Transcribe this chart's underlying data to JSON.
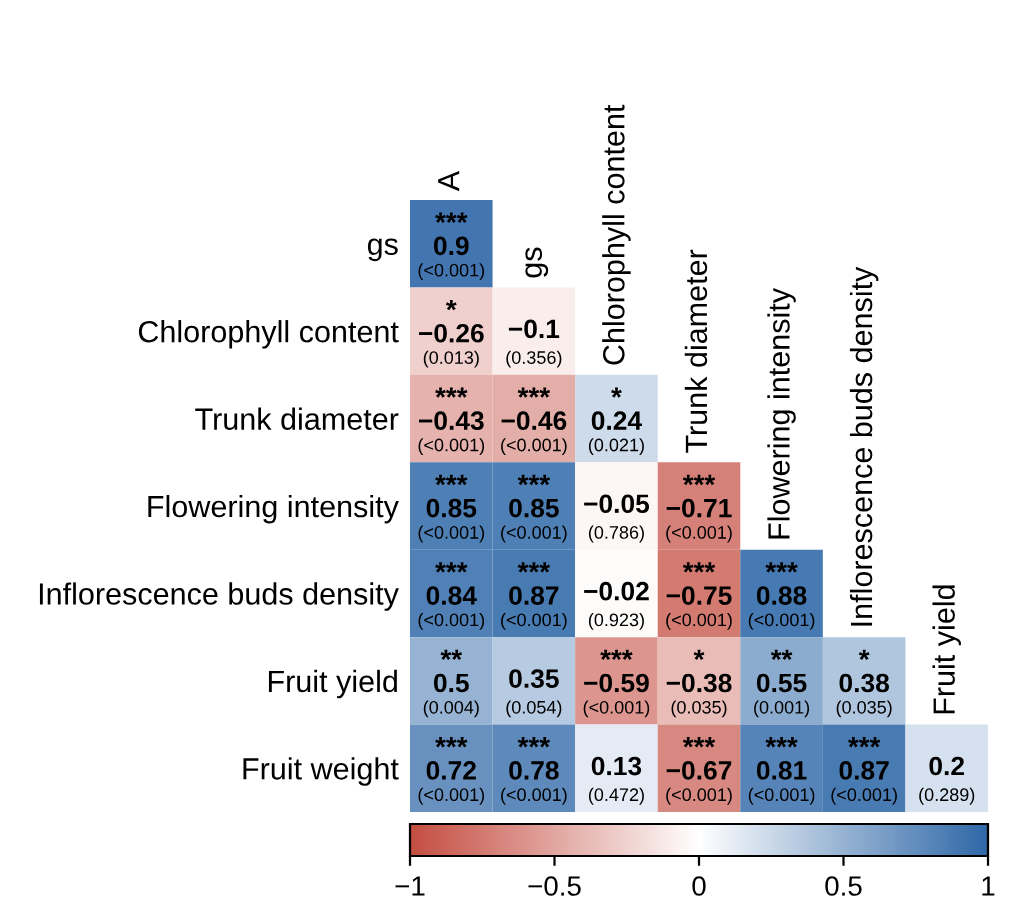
{
  "chart_data": {
    "type": "heatmap",
    "categories": [
      "A",
      "gs",
      "Chlorophyll content",
      "Trunk diameter",
      "Flowering intensity",
      "Inflorescence buds density",
      "Fruit yield"
    ],
    "y_categories": [
      "gs",
      "Chlorophyll content",
      "Trunk diameter",
      "Flowering intensity",
      "Inflorescence buds density",
      "Fruit yield",
      "Fruit weight"
    ],
    "cells": [
      [
        0.9,
        null,
        null,
        null,
        null,
        null,
        null
      ],
      [
        -0.26,
        -0.1,
        null,
        null,
        null,
        null,
        null
      ],
      [
        -0.43,
        -0.46,
        0.24,
        null,
        null,
        null,
        null
      ],
      [
        0.85,
        0.85,
        -0.05,
        -0.71,
        null,
        null,
        null
      ],
      [
        0.84,
        0.87,
        -0.02,
        -0.75,
        0.88,
        null,
        null
      ],
      [
        0.5,
        0.35,
        -0.59,
        -0.38,
        0.55,
        0.38,
        null
      ],
      [
        0.72,
        0.78,
        0.13,
        -0.67,
        0.81,
        0.87,
        0.2
      ]
    ],
    "cell_labels": [
      [
        "***\n0.9\n(<0.001)",
        null,
        null,
        null,
        null,
        null,
        null
      ],
      [
        "*\n−0.26\n(0.013)",
        "−0.1\n(0.356)",
        null,
        null,
        null,
        null,
        null
      ],
      [
        "***\n−0.43\n(<0.001)",
        "***\n−0.46\n(<0.001)",
        "*\n0.24\n(0.021)",
        null,
        null,
        null,
        null
      ],
      [
        "***\n0.85\n(<0.001)",
        "***\n0.85\n(<0.001)",
        "−0.05\n(0.786)",
        "***\n−0.71\n(<0.001)",
        null,
        null,
        null
      ],
      [
        "***\n0.84\n(<0.001)",
        "***\n0.87\n(<0.001)",
        "−0.02\n(0.923)",
        "***\n−0.75\n(<0.001)",
        "***\n0.88\n(<0.001)",
        null,
        null
      ],
      [
        "**\n0.5\n(0.004)",
        "0.35\n(0.054)",
        "***\n−0.59\n(<0.001)",
        "*\n−0.38\n(0.035)",
        "**\n0.55\n(0.001)",
        "*\n0.38\n(0.035)",
        null
      ],
      [
        "***\n0.72\n(<0.001)",
        "***\n0.78\n(<0.001)",
        "0.13\n(0.472)",
        "***\n−0.67\n(<0.001)",
        "***\n0.81\n(<0.001)",
        "***\n0.87\n(<0.001)",
        "0.2\n(0.289)"
      ]
    ],
    "clim": [
      -1,
      1
    ],
    "cticks": [
      {
        "value": -1,
        "label": "−1"
      },
      {
        "value": -0.5,
        "label": "−0.5"
      },
      0,
      0.5,
      1
    ]
  }
}
